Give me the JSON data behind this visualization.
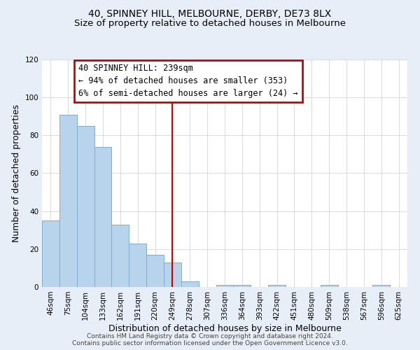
{
  "title": "40, SPINNEY HILL, MELBOURNE, DERBY, DE73 8LX",
  "subtitle": "Size of property relative to detached houses in Melbourne",
  "xlabel": "Distribution of detached houses by size in Melbourne",
  "ylabel": "Number of detached properties",
  "bar_labels": [
    "46sqm",
    "75sqm",
    "104sqm",
    "133sqm",
    "162sqm",
    "191sqm",
    "220sqm",
    "249sqm",
    "278sqm",
    "307sqm",
    "336sqm",
    "364sqm",
    "393sqm",
    "422sqm",
    "451sqm",
    "480sqm",
    "509sqm",
    "538sqm",
    "567sqm",
    "596sqm",
    "625sqm"
  ],
  "bar_values": [
    35,
    91,
    85,
    74,
    33,
    23,
    17,
    13,
    3,
    0,
    1,
    1,
    0,
    1,
    0,
    0,
    1,
    0,
    0,
    1,
    0
  ],
  "bar_color": "#b8d4ed",
  "bar_edge_color": "#7aaed4",
  "vline_x": 7.0,
  "vline_color": "#cc0000",
  "ylim": [
    0,
    120
  ],
  "yticks": [
    0,
    20,
    40,
    60,
    80,
    100,
    120
  ],
  "annotation_line1": "40 SPINNEY HILL: 239sqm",
  "annotation_line2": "← 94% of detached houses are smaller (353)",
  "annotation_line3": "6% of semi-detached houses are larger (24) →",
  "annotation_box_color": "#cc0000",
  "footer_line1": "Contains HM Land Registry data © Crown copyright and database right 2024.",
  "footer_line2": "Contains public sector information licensed under the Open Government Licence v3.0.",
  "bg_color": "#e8eef8",
  "plot_bg_color": "#ffffff",
  "title_fontsize": 10,
  "subtitle_fontsize": 9.5,
  "axis_label_fontsize": 9,
  "tick_fontsize": 7.5,
  "annotation_fontsize": 8.5,
  "footer_fontsize": 6.5
}
